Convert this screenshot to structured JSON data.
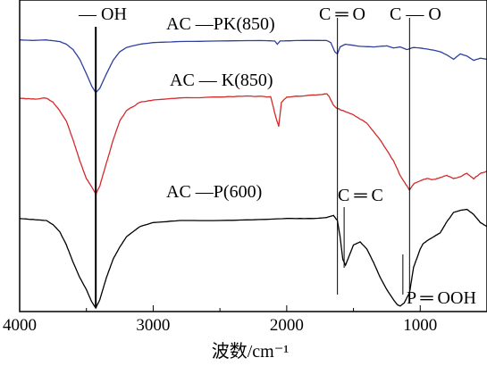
{
  "chart_data": {
    "type": "line",
    "xlabel": "波数/cm⁻¹",
    "x_reversed": true,
    "xlim": [
      4000,
      500
    ],
    "xticks": [
      4000,
      3000,
      2000,
      1000
    ],
    "series": [
      {
        "name": "AC —PK(850)",
        "color": "#2e3f9e",
        "offset": 0.72,
        "scale": 0.18,
        "points": [
          [
            4000,
            0.98
          ],
          [
            3900,
            0.97
          ],
          [
            3800,
            0.98
          ],
          [
            3700,
            0.95
          ],
          [
            3650,
            0.9
          ],
          [
            3600,
            0.8
          ],
          [
            3550,
            0.62
          ],
          [
            3500,
            0.35
          ],
          [
            3460,
            0.12
          ],
          [
            3430,
            0.0
          ],
          [
            3400,
            0.08
          ],
          [
            3350,
            0.35
          ],
          [
            3300,
            0.6
          ],
          [
            3250,
            0.76
          ],
          [
            3200,
            0.84
          ],
          [
            3100,
            0.9
          ],
          [
            3000,
            0.93
          ],
          [
            2800,
            0.95
          ],
          [
            2500,
            0.96
          ],
          [
            2200,
            0.97
          ],
          [
            2090,
            0.96
          ],
          [
            2070,
            0.9
          ],
          [
            2050,
            0.96
          ],
          [
            1900,
            0.97
          ],
          [
            1800,
            0.97
          ],
          [
            1700,
            0.97
          ],
          [
            1670,
            0.93
          ],
          [
            1640,
            0.76
          ],
          [
            1620,
            0.72
          ],
          [
            1600,
            0.85
          ],
          [
            1560,
            0.9
          ],
          [
            1450,
            0.86
          ],
          [
            1350,
            0.85
          ],
          [
            1250,
            0.87
          ],
          [
            1200,
            0.83
          ],
          [
            1150,
            0.85
          ],
          [
            1100,
            0.8
          ],
          [
            1050,
            0.84
          ],
          [
            1000,
            0.83
          ],
          [
            900,
            0.79
          ],
          [
            850,
            0.76
          ],
          [
            800,
            0.7
          ],
          [
            750,
            0.62
          ],
          [
            700,
            0.72
          ],
          [
            650,
            0.68
          ],
          [
            600,
            0.6
          ],
          [
            550,
            0.64
          ],
          [
            500,
            0.62
          ]
        ]
      },
      {
        "name": "AC — K(850)",
        "color": "#d42a2a",
        "offset": 0.38,
        "scale": 0.35,
        "points": [
          [
            4000,
            0.92
          ],
          [
            3900,
            0.91
          ],
          [
            3800,
            0.92
          ],
          [
            3750,
            0.88
          ],
          [
            3700,
            0.8
          ],
          [
            3650,
            0.7
          ],
          [
            3600,
            0.52
          ],
          [
            3550,
            0.32
          ],
          [
            3500,
            0.15
          ],
          [
            3450,
            0.05
          ],
          [
            3430,
            0.0
          ],
          [
            3400,
            0.08
          ],
          [
            3350,
            0.3
          ],
          [
            3300,
            0.52
          ],
          [
            3250,
            0.7
          ],
          [
            3200,
            0.8
          ],
          [
            3100,
            0.88
          ],
          [
            3000,
            0.9
          ],
          [
            2800,
            0.92
          ],
          [
            2500,
            0.93
          ],
          [
            2300,
            0.94
          ],
          [
            2120,
            0.93
          ],
          [
            2080,
            0.73
          ],
          [
            2060,
            0.65
          ],
          [
            2040,
            0.88
          ],
          [
            2000,
            0.93
          ],
          [
            1800,
            0.95
          ],
          [
            1700,
            0.96
          ],
          [
            1680,
            0.93
          ],
          [
            1650,
            0.85
          ],
          [
            1620,
            0.82
          ],
          [
            1580,
            0.8
          ],
          [
            1500,
            0.76
          ],
          [
            1400,
            0.68
          ],
          [
            1300,
            0.52
          ],
          [
            1200,
            0.32
          ],
          [
            1150,
            0.18
          ],
          [
            1100,
            0.08
          ],
          [
            1080,
            0.04
          ],
          [
            1050,
            0.1
          ],
          [
            1000,
            0.13
          ],
          [
            950,
            0.15
          ],
          [
            900,
            0.14
          ],
          [
            850,
            0.16
          ],
          [
            800,
            0.18
          ],
          [
            750,
            0.15
          ],
          [
            700,
            0.17
          ],
          [
            650,
            0.2
          ],
          [
            600,
            0.15
          ],
          [
            550,
            0.2
          ],
          [
            500,
            0.22
          ]
        ]
      },
      {
        "name": "AC —P(600)",
        "color": "#000000",
        "offset": 0.0,
        "scale": 0.34,
        "points": [
          [
            4000,
            0.88
          ],
          [
            3900,
            0.87
          ],
          [
            3800,
            0.86
          ],
          [
            3750,
            0.82
          ],
          [
            3700,
            0.75
          ],
          [
            3650,
            0.62
          ],
          [
            3600,
            0.45
          ],
          [
            3550,
            0.3
          ],
          [
            3500,
            0.18
          ],
          [
            3460,
            0.06
          ],
          [
            3430,
            0.0
          ],
          [
            3400,
            0.08
          ],
          [
            3350,
            0.3
          ],
          [
            3300,
            0.48
          ],
          [
            3250,
            0.6
          ],
          [
            3200,
            0.7
          ],
          [
            3100,
            0.8
          ],
          [
            3000,
            0.84
          ],
          [
            2800,
            0.86
          ],
          [
            2500,
            0.86
          ],
          [
            2200,
            0.87
          ],
          [
            2000,
            0.88
          ],
          [
            1800,
            0.88
          ],
          [
            1700,
            0.89
          ],
          [
            1650,
            0.91
          ],
          [
            1620,
            0.86
          ],
          [
            1600,
            0.7
          ],
          [
            1580,
            0.48
          ],
          [
            1560,
            0.42
          ],
          [
            1530,
            0.52
          ],
          [
            1500,
            0.62
          ],
          [
            1450,
            0.65
          ],
          [
            1400,
            0.58
          ],
          [
            1350,
            0.45
          ],
          [
            1300,
            0.3
          ],
          [
            1250,
            0.18
          ],
          [
            1200,
            0.08
          ],
          [
            1170,
            0.03
          ],
          [
            1150,
            0.02
          ],
          [
            1120,
            0.05
          ],
          [
            1080,
            0.15
          ],
          [
            1050,
            0.4
          ],
          [
            1000,
            0.58
          ],
          [
            980,
            0.63
          ],
          [
            950,
            0.66
          ],
          [
            900,
            0.7
          ],
          [
            850,
            0.74
          ],
          [
            800,
            0.85
          ],
          [
            750,
            0.94
          ],
          [
            700,
            0.96
          ],
          [
            650,
            0.97
          ],
          [
            600,
            0.92
          ],
          [
            550,
            0.84
          ],
          [
            500,
            0.8
          ]
        ]
      }
    ],
    "annotations": [
      {
        "text": "— OH",
        "x": 3430,
        "line": true
      },
      {
        "text": "C ═ O",
        "x": 1620,
        "line": true
      },
      {
        "text": "C — O",
        "x": 1080,
        "line": true
      },
      {
        "text": "C ═ C",
        "x": 1570,
        "line": true
      },
      {
        "text": "P ═ OOH",
        "x": 1130,
        "line": true
      }
    ]
  }
}
